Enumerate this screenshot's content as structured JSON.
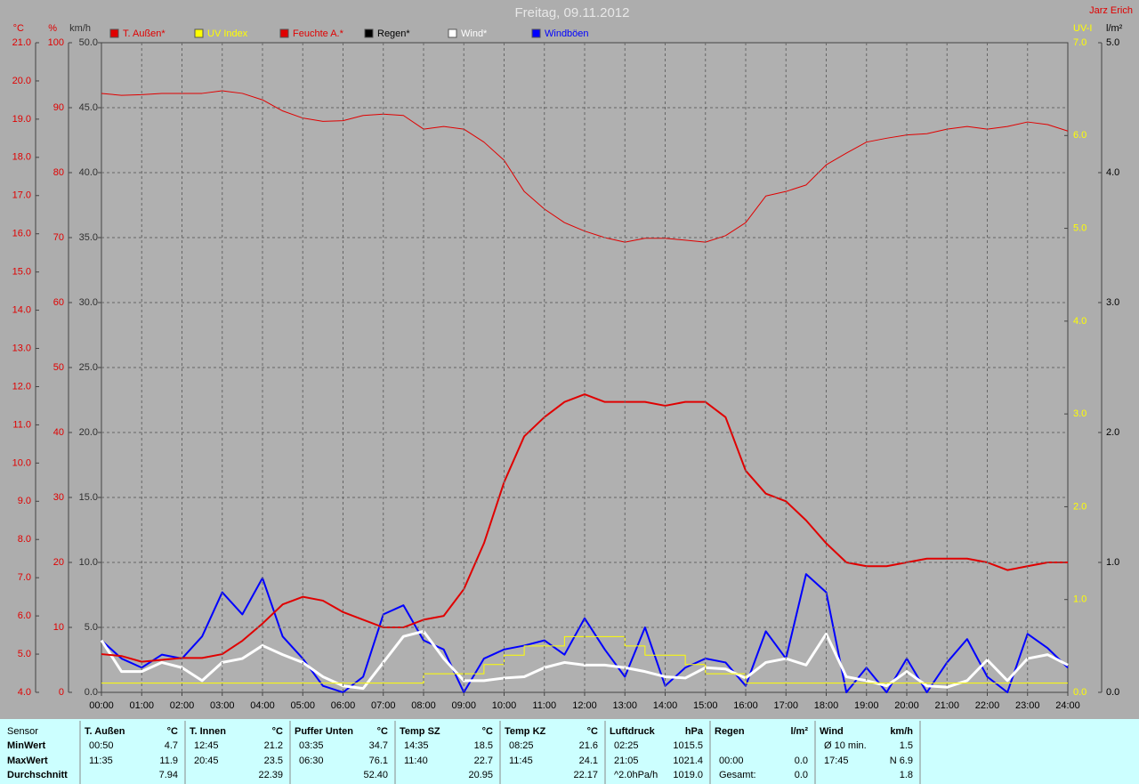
{
  "chart_data": {
    "type": "line",
    "title": "Freitag, 09.11.2012",
    "author": "Jarz Erich",
    "grid": true,
    "xticks": [
      "00:00",
      "01:00",
      "02:00",
      "03:00",
      "04:00",
      "05:00",
      "06:00",
      "07:00",
      "08:00",
      "09:00",
      "10:00",
      "11:00",
      "12:00",
      "13:00",
      "14:00",
      "15:00",
      "16:00",
      "17:00",
      "18:00",
      "19:00",
      "20:00",
      "21:00",
      "22:00",
      "23:00",
      "24:00"
    ],
    "x": [
      "00:00",
      "00:30",
      "01:00",
      "01:30",
      "02:00",
      "02:30",
      "03:00",
      "03:30",
      "04:00",
      "04:30",
      "05:00",
      "05:30",
      "06:00",
      "06:30",
      "07:00",
      "07:30",
      "08:00",
      "08:30",
      "09:00",
      "09:30",
      "10:00",
      "10:30",
      "11:00",
      "11:30",
      "12:00",
      "12:30",
      "13:00",
      "13:30",
      "14:00",
      "14:30",
      "15:00",
      "15:30",
      "16:00",
      "16:30",
      "17:00",
      "17:30",
      "18:00",
      "18:30",
      "19:00",
      "19:30",
      "20:00",
      "20:30",
      "21:00",
      "21:30",
      "22:00",
      "22:30",
      "23:00",
      "23:30",
      "24:00"
    ],
    "axes": [
      {
        "label": "°C",
        "color": "#e00000",
        "lim": [
          4,
          21
        ],
        "ticks": [
          {
            "value": 4,
            "label": "4.0"
          },
          {
            "value": 5,
            "label": "5.0"
          },
          {
            "value": 6,
            "label": "6.0"
          },
          {
            "value": 7,
            "label": "7.0"
          },
          {
            "value": 8,
            "label": "8.0"
          },
          {
            "value": 9,
            "label": "9.0"
          },
          {
            "value": 10,
            "label": "10.0"
          },
          {
            "value": 11,
            "label": "11.0"
          },
          {
            "value": 12,
            "label": "12.0"
          },
          {
            "value": 13,
            "label": "13.0"
          },
          {
            "value": 14,
            "label": "14.0"
          },
          {
            "value": 15,
            "label": "15.0"
          },
          {
            "value": 16,
            "label": "16.0"
          },
          {
            "value": 17,
            "label": "17.0"
          },
          {
            "value": 18,
            "label": "18.0"
          },
          {
            "value": 19,
            "label": "19.0"
          },
          {
            "value": 20,
            "label": "20.0"
          },
          {
            "value": 21,
            "label": "21.0"
          }
        ]
      },
      {
        "label": "%",
        "color": "#e00000",
        "lim": [
          0,
          100
        ],
        "ticks": [
          0,
          10,
          20,
          30,
          40,
          50,
          60,
          70,
          80,
          90,
          100
        ]
      },
      {
        "label": "km/h",
        "color": "#303030",
        "lim": [
          0,
          50
        ],
        "ticks": [
          {
            "value": 0,
            "label": "0.0"
          },
          {
            "value": 5,
            "label": "5.0"
          },
          {
            "value": 10,
            "label": "10.0"
          },
          {
            "value": 15,
            "label": "15.0"
          },
          {
            "value": 20,
            "label": "20.0"
          },
          {
            "value": 25,
            "label": "25.0"
          },
          {
            "value": 30,
            "label": "30.0"
          },
          {
            "value": 35,
            "label": "35.0"
          },
          {
            "value": 40,
            "label": "40.0"
          },
          {
            "value": 45,
            "label": "45.0"
          },
          {
            "value": 50,
            "label": "50.0"
          }
        ]
      },
      {
        "label": "UV-I",
        "color": "#ffff00",
        "lim": [
          0,
          7
        ],
        "ticks": [
          {
            "value": 0,
            "label": "0.0"
          },
          {
            "value": 1,
            "label": "1.0"
          },
          {
            "value": 2,
            "label": "2.0"
          },
          {
            "value": 3,
            "label": "3.0"
          },
          {
            "value": 4,
            "label": "4.0"
          },
          {
            "value": 5,
            "label": "5.0"
          },
          {
            "value": 6,
            "label": "6.0"
          },
          {
            "value": 7,
            "label": "7.0"
          }
        ]
      },
      {
        "label": "l/m²",
        "color": "#000000",
        "lim": [
          0,
          5
        ],
        "ticks": [
          {
            "value": 0,
            "label": "0.0"
          },
          {
            "value": 1,
            "label": "1.0"
          },
          {
            "value": 2,
            "label": "2.0"
          },
          {
            "value": 3,
            "label": "3.0"
          },
          {
            "value": 4,
            "label": "4.0"
          },
          {
            "value": 5,
            "label": "5.0"
          }
        ]
      }
    ],
    "series": [
      {
        "name": "T. Außen*",
        "color": "#e00000",
        "axis": 0,
        "width": 2,
        "values": [
          5.0,
          4.95,
          4.8,
          4.85,
          4.9,
          4.9,
          5.0,
          5.35,
          5.8,
          6.3,
          6.5,
          6.4,
          6.1,
          5.9,
          5.7,
          5.7,
          5.9,
          6.0,
          6.7,
          7.9,
          9.5,
          10.7,
          11.2,
          11.6,
          11.8,
          11.6,
          11.6,
          11.6,
          11.5,
          11.6,
          11.6,
          11.2,
          9.8,
          9.2,
          9.0,
          8.5,
          7.9,
          7.4,
          7.3,
          7.3,
          7.4,
          7.5,
          7.5,
          7.5,
          7.4,
          7.2,
          7.3,
          7.4,
          7.4
        ]
      },
      {
        "name": "UV Index",
        "color": "#ffff00",
        "axis": 3,
        "width": 1,
        "step": true,
        "values": [
          0.1,
          0.1,
          0.1,
          0.1,
          0.1,
          0.1,
          0.1,
          0.1,
          0.1,
          0.1,
          0.1,
          0.1,
          0.1,
          0.1,
          0.1,
          0.1,
          0.2,
          0.2,
          0.2,
          0.3,
          0.4,
          0.5,
          0.5,
          0.6,
          0.6,
          0.6,
          0.5,
          0.4,
          0.4,
          0.3,
          0.2,
          0.2,
          0.1,
          0.1,
          0.1,
          0.1,
          0.1,
          0.1,
          0.1,
          0.1,
          0.1,
          0.1,
          0.1,
          0.1,
          0.1,
          0.1,
          0.1,
          0.1,
          0.1
        ]
      },
      {
        "name": "Feuchte A.*",
        "color": "#e00000",
        "axis": 1,
        "width": 1,
        "values": [
          92.2,
          91.9,
          92,
          92.2,
          92.2,
          92.2,
          92.6,
          92.2,
          91.2,
          89.5,
          88.4,
          87.9,
          88,
          88.8,
          89,
          88.8,
          86.7,
          87.1,
          86.7,
          84.7,
          81.9,
          77.1,
          74.4,
          72.3,
          71,
          70,
          69.3,
          69.9,
          69.9,
          69.6,
          69.3,
          70.3,
          72.3,
          76.4,
          77.1,
          78.1,
          81.2,
          83,
          84.7,
          85.3,
          85.8,
          86,
          86.7,
          87.1,
          86.7,
          87.1,
          87.8,
          87.4,
          86.4
        ]
      },
      {
        "name": "Regen*",
        "color": "#000000",
        "axis": 4,
        "width": 1
      },
      {
        "name": "Wind*",
        "color": "#ffffff",
        "axis": 2,
        "width": 3,
        "values": [
          4.0,
          1.6,
          1.6,
          2.3,
          1.9,
          0.9,
          2.3,
          2.6,
          3.6,
          2.9,
          2.3,
          1.2,
          0.5,
          0.3,
          2.3,
          4.3,
          4.7,
          2.6,
          0.9,
          0.9,
          1.1,
          1.2,
          1.9,
          2.3,
          2.1,
          2.1,
          1.9,
          1.6,
          1.2,
          1.1,
          1.9,
          1.8,
          1.1,
          2.3,
          2.6,
          2.1,
          4.5,
          1.2,
          0.9,
          0.5,
          1.6,
          0.5,
          0.4,
          0.9,
          2.5,
          0.9,
          2.6,
          2.9,
          2.1
        ]
      },
      {
        "name": "Windböen",
        "color": "#0000ff",
        "axis": 2,
        "width": 2,
        "values": [
          4.0,
          2.6,
          1.9,
          2.9,
          2.6,
          4.3,
          7.7,
          6.0,
          8.8,
          4.3,
          2.6,
          0.5,
          0,
          1.2,
          6.0,
          6.7,
          4.0,
          3.3,
          0,
          2.6,
          3.3,
          3.6,
          4.0,
          2.9,
          5.7,
          3.3,
          1.2,
          5.0,
          0.5,
          1.9,
          2.6,
          2.3,
          0.5,
          4.7,
          2.6,
          9.1,
          7.7,
          0,
          1.9,
          0,
          2.6,
          0,
          2.3,
          4.1,
          1.2,
          0,
          4.5,
          3.4,
          1.9
        ]
      }
    ]
  },
  "table": {
    "rowlabels": [
      "Sensor",
      "MinWert",
      "MaxWert",
      "Durchschnitt"
    ],
    "groups": [
      {
        "name": "T. Außen",
        "unit": "°C",
        "min": {
          "time": "00:50",
          "value": "4.7"
        },
        "max": {
          "time": "11:35",
          "value": "11.9"
        },
        "avg": {
          "value": "7.94"
        }
      },
      {
        "name": "T. Innen",
        "unit": "°C",
        "min": {
          "time": "12:45",
          "value": "21.2"
        },
        "max": {
          "time": "20:45",
          "value": "23.5"
        },
        "avg": {
          "value": "22.39"
        }
      },
      {
        "name": "Puffer Unten",
        "unit": "°C",
        "min": {
          "time": "03:35",
          "value": "34.7"
        },
        "max": {
          "time": "06:30",
          "value": "76.1"
        },
        "avg": {
          "value": "52.40"
        }
      },
      {
        "name": "Temp SZ",
        "unit": "°C",
        "min": {
          "time": "14:35",
          "value": "18.5"
        },
        "max": {
          "time": "11:40",
          "value": "22.7"
        },
        "avg": {
          "value": "20.95"
        }
      },
      {
        "name": "Temp KZ",
        "unit": "°C",
        "min": {
          "time": "08:25",
          "value": "21.6"
        },
        "max": {
          "time": "11:45",
          "value": "24.1"
        },
        "avg": {
          "value": "22.17"
        }
      },
      {
        "name": "Luftdruck",
        "unit": "hPa",
        "min": {
          "time": "02:25",
          "value": "1015.5"
        },
        "max": {
          "time": "21:05",
          "value": "1021.4"
        },
        "avg": {
          "time": "^2.0hPa/h",
          "value": "1019.0"
        }
      },
      {
        "name": "Regen",
        "unit": "l/m²",
        "max": {
          "time": "00:00",
          "value": "0.0"
        },
        "avg": {
          "time": "Gesamt:",
          "value": "0.0"
        }
      },
      {
        "name": "Wind",
        "unit": "km/h",
        "min": {
          "time": "Ø 10 min.",
          "value": "1.5"
        },
        "max": {
          "time": "17:45",
          "value": "N 6.9"
        },
        "avg": {
          "value": "1.8"
        }
      }
    ]
  }
}
